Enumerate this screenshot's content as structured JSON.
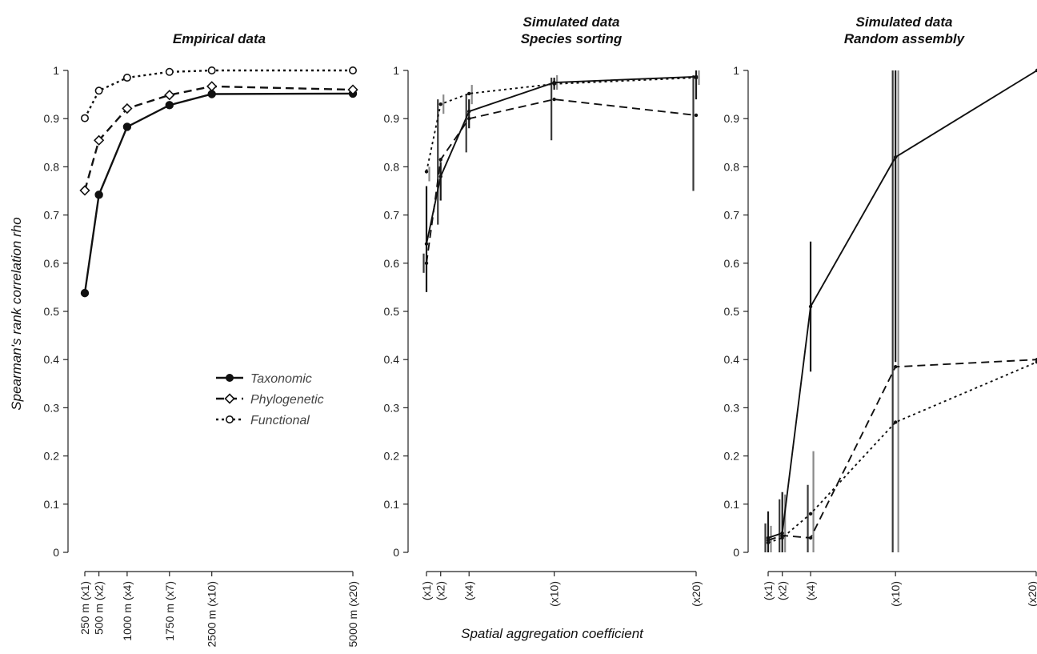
{
  "figure": {
    "ylabel": "Spearman's rank correlation rho",
    "xlabel": "Spatial aggregation coefficient"
  },
  "chart_data": [
    {
      "type": "line",
      "title": [
        "Empirical data"
      ],
      "x": [
        1,
        2,
        4,
        7,
        10,
        20
      ],
      "x_tick_labels": [
        "250 m (x1)",
        "500 m (x2)",
        "1000 m (x4)",
        "1750 m (x7)",
        "2500 m (x10)",
        "5000 m (x20)"
      ],
      "ylim": [
        0,
        1
      ],
      "y_ticks": [
        "0",
        "0.1",
        "0.2",
        "0.3",
        "0.4",
        "0.5",
        "0.6",
        "0.7",
        "0.8",
        "0.9",
        "1"
      ],
      "legend_position": "center-right",
      "series": [
        {
          "name": "Taxonomic",
          "style": "solid",
          "marker": "filled-circle",
          "values": [
            0.538,
            0.742,
            0.883,
            0.928,
            0.951,
            0.952
          ]
        },
        {
          "name": "Phylogenetic",
          "style": "dashed",
          "marker": "open-diamond",
          "values": [
            0.751,
            0.855,
            0.921,
            0.949,
            0.967,
            0.96
          ]
        },
        {
          "name": "Functional",
          "style": "dotted",
          "marker": "open-circle",
          "values": [
            0.901,
            0.958,
            0.985,
            0.997,
            1.0,
            1.0
          ]
        }
      ]
    },
    {
      "type": "line",
      "title": [
        "Simulated data",
        "Species sorting"
      ],
      "x": [
        1,
        2,
        4,
        10,
        20
      ],
      "x_tick_labels": [
        "(x1)",
        "(x2)",
        "(x4)",
        "(x10)",
        "(x20)"
      ],
      "ylim": [
        0,
        1
      ],
      "y_ticks": [
        "0",
        "0.1",
        "0.2",
        "0.3",
        "0.4",
        "0.5",
        "0.6",
        "0.7",
        "0.8",
        "0.9",
        "1"
      ],
      "error_bars": true,
      "series": [
        {
          "style": "solid",
          "values": [
            0.64,
            0.78,
            0.915,
            0.975,
            0.987
          ],
          "err_low": [
            0.54,
            0.73,
            0.88,
            0.96,
            0.94
          ],
          "err_high": [
            0.76,
            0.81,
            0.94,
            0.985,
            1.0
          ]
        },
        {
          "style": "dashed",
          "values": [
            0.6,
            0.815,
            0.9,
            0.94,
            0.907
          ],
          "err_low": [
            0.58,
            0.68,
            0.83,
            0.855,
            0.75
          ],
          "err_high": [
            0.62,
            0.94,
            0.95,
            0.985,
            0.99
          ]
        },
        {
          "style": "dotted",
          "values": [
            0.79,
            0.93,
            0.952,
            0.972,
            0.985
          ],
          "err_low": [
            0.77,
            0.91,
            0.93,
            0.96,
            0.97
          ],
          "err_high": [
            0.8,
            0.95,
            0.97,
            0.99,
            1.0
          ]
        }
      ]
    },
    {
      "type": "line",
      "title": [
        "Simulated data",
        "Random assembly"
      ],
      "x": [
        1,
        2,
        4,
        10,
        20
      ],
      "x_tick_labels": [
        "(x1)",
        "(x2)",
        "(x4)",
        "(x10)",
        "(x20)"
      ],
      "ylim": [
        0,
        1
      ],
      "y_ticks": [
        "0",
        "0.1",
        "0.2",
        "0.3",
        "0.4",
        "0.5",
        "0.6",
        "0.7",
        "0.8",
        "0.9",
        "1"
      ],
      "error_bars": true,
      "series": [
        {
          "style": "solid",
          "values": [
            0.03,
            0.04,
            0.51,
            0.82,
            1.0
          ],
          "err_low": [
            0.0,
            0.0,
            0.375,
            0.395,
            1.0
          ],
          "err_high": [
            0.085,
            0.125,
            0.645,
            1.0,
            1.0
          ]
        },
        {
          "style": "dashed",
          "values": [
            0.025,
            0.035,
            0.03,
            0.385,
            0.4
          ],
          "err_low": [
            0.0,
            0.0,
            0.0,
            0.0,
            0.4
          ],
          "err_high": [
            0.06,
            0.11,
            0.14,
            1.0,
            0.4
          ]
        },
        {
          "style": "dotted",
          "values": [
            0.02,
            0.03,
            0.08,
            0.27,
            0.395
          ],
          "err_low": [
            0.0,
            0.0,
            0.0,
            0.0,
            0.395
          ],
          "err_high": [
            0.055,
            0.12,
            0.21,
            1.0,
            0.395
          ]
        }
      ]
    }
  ]
}
